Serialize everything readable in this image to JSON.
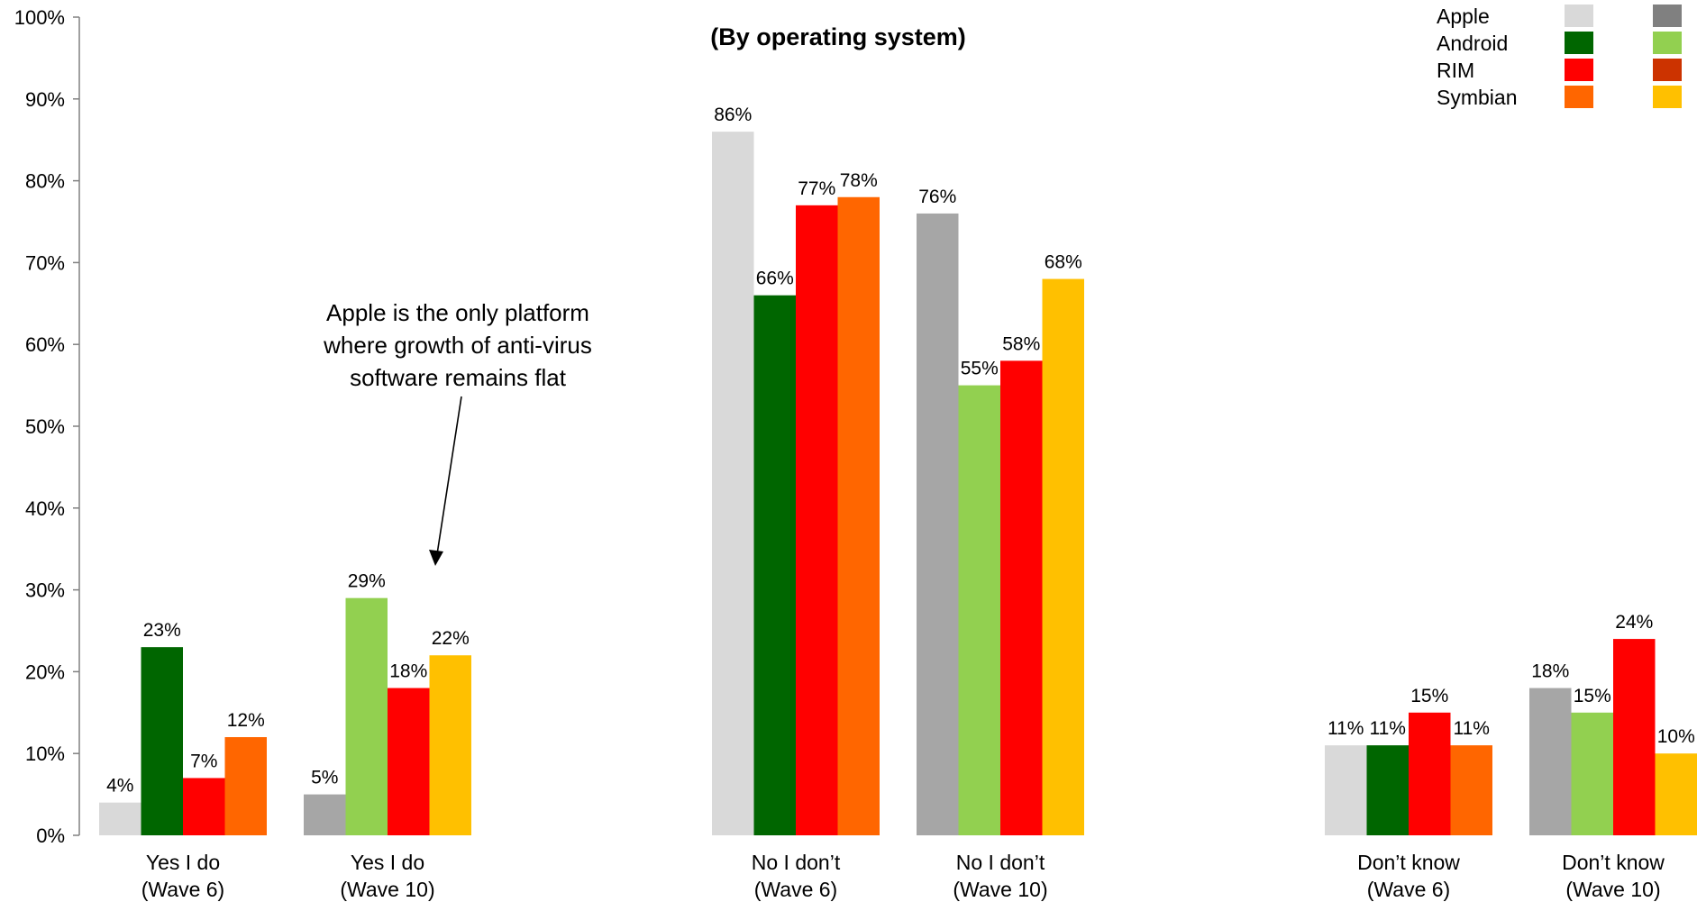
{
  "chart_data": {
    "type": "bar",
    "title": "(By operating system)",
    "ylim": [
      0,
      100
    ],
    "yticks": [
      "0%",
      "10%",
      "20%",
      "30%",
      "40%",
      "50%",
      "60%",
      "70%",
      "80%",
      "90%",
      "100%"
    ],
    "grid": false,
    "legend_position": "top-right",
    "legend": [
      {
        "name": "Apple",
        "colors": [
          "#D9D9D9",
          "#808080"
        ]
      },
      {
        "name": "Android",
        "colors": [
          "#006600",
          "#92D050"
        ]
      },
      {
        "name": "RIM",
        "colors": [
          "#FF0000",
          "#CC3300"
        ]
      },
      {
        "name": "Symbian",
        "colors": [
          "#FF6600",
          "#FFC000"
        ]
      }
    ],
    "groups": [
      {
        "label": [
          "Yes I do",
          "(Wave 6)"
        ],
        "values": [
          4,
          23,
          7,
          12
        ],
        "labels": [
          "4%",
          "23%",
          "7%",
          "12%"
        ],
        "colors": [
          "#D9D9D9",
          "#006600",
          "#FF0000",
          "#FF6600"
        ]
      },
      {
        "label": [
          "Yes I do",
          "(Wave 10)"
        ],
        "values": [
          5,
          29,
          18,
          22
        ],
        "labels": [
          "5%",
          "29%",
          "18%",
          "22%"
        ],
        "colors": [
          "#A6A6A6",
          "#92D050",
          "#FF0000",
          "#FFC000"
        ]
      },
      {
        "label": [
          "No I don’t",
          "(Wave 6)"
        ],
        "values": [
          86,
          66,
          77,
          78
        ],
        "labels": [
          "86%",
          "66%",
          "77%",
          "78%"
        ],
        "colors": [
          "#D9D9D9",
          "#006600",
          "#FF0000",
          "#FF6600"
        ]
      },
      {
        "label": [
          "No I don’t",
          "(Wave 10)"
        ],
        "values": [
          76,
          55,
          58,
          68
        ],
        "labels": [
          "76%",
          "55%",
          "58%",
          "68%"
        ],
        "colors": [
          "#A6A6A6",
          "#92D050",
          "#FF0000",
          "#FFC000"
        ]
      },
      {
        "label": [
          "Don’t know",
          "(Wave 6)"
        ],
        "values": [
          11,
          11,
          15,
          11
        ],
        "labels": [
          "11%",
          "11%",
          "15%",
          "11%"
        ],
        "colors": [
          "#D9D9D9",
          "#006600",
          "#FF0000",
          "#FF6600"
        ]
      },
      {
        "label": [
          "Don’t know",
          "(Wave 10)"
        ],
        "values": [
          18,
          15,
          24,
          10
        ],
        "labels": [
          "18%",
          "15%",
          "24%",
          "10%"
        ],
        "colors": [
          "#A6A6A6",
          "#92D050",
          "#FF0000",
          "#FFC000"
        ]
      }
    ],
    "annotation": {
      "lines": [
        "Apple is the only platform",
        "where growth of anti-virus",
        "software remains flat"
      ]
    }
  }
}
